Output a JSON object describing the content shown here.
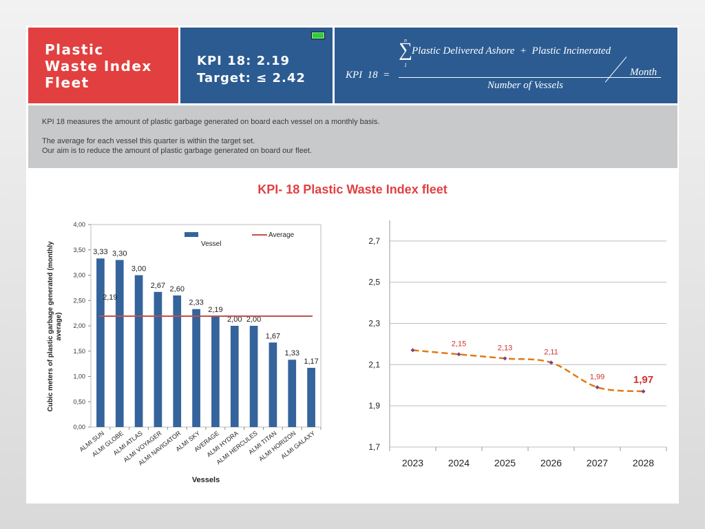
{
  "header": {
    "title_lines": [
      "Plastic",
      "Waste Index",
      "Fleet"
    ],
    "kpi_value": "KPI 18: 2.19",
    "kpi_target": "Target: ≤ 2.42",
    "battery_icon": "battery-full-icon",
    "formula": {
      "lhs": "KPI  18  =",
      "sigma_top": "n",
      "sigma_bottom": "1",
      "numerator": "Plastic Delivered Ashore  +  Plastic Incinerated",
      "per": "Month",
      "denominator": "Number of Vessels"
    }
  },
  "description": {
    "line1": "KPI 18 measures the amount of plastic garbage generated on board each vessel on a monthly basis.",
    "line2": "The average for each vessel this quarter is within the target set.",
    "line3": "Our aim is to reduce the amount of plastic garbage generated on board our fleet."
  },
  "main_title": "KPI- 18 Plastic Waste Index fleet",
  "colors": {
    "red": "#e24040",
    "blue": "#2b5b91",
    "bar": "#34649b",
    "avg_line": "#c0504d",
    "trend_line": "#e07a10",
    "marker": "#7d3f8c",
    "trend_label": "#d0312d"
  },
  "chart_data": [
    {
      "type": "bar",
      "xlabel": "Vessels",
      "ylabel": "Cubic meters of plastic garbage generated (monthly average)",
      "ylim": [
        0,
        4
      ],
      "yticks": [
        "0,00",
        "0,50",
        "1,00",
        "1,50",
        "2,00",
        "2,50",
        "3,00",
        "3,50",
        "4,00"
      ],
      "categories": [
        "ALMI SUN",
        "ALMI GLOBE",
        "ALMI ATLAS",
        "ALMI VOYAGER",
        "ALMI NAVIGATOR",
        "ALMI SKY",
        "AVERAGE",
        "ALMI HYDRA",
        "ALMI HERCULES",
        "ALMI TITAN",
        "ALMI HORIZON",
        "ALMI GALAXY"
      ],
      "series": [
        {
          "name": "Vessel",
          "values": [
            3.33,
            3.3,
            3.0,
            2.67,
            2.6,
            2.33,
            2.19,
            2.0,
            2.0,
            1.67,
            1.33,
            1.17
          ],
          "labels": [
            "3,33",
            "3,30",
            "3,00",
            "2,67",
            "2,60",
            "2,33",
            "2,19",
            "2,00",
            "2,00",
            "1,67",
            "1,33",
            "1,17"
          ]
        },
        {
          "name": "Average",
          "type": "line",
          "value": 2.19,
          "label": "2,19"
        }
      ],
      "grid": false,
      "legend": "top-right"
    },
    {
      "type": "line",
      "x": [
        "2023",
        "2024",
        "2025",
        "2026",
        "2027",
        "2028"
      ],
      "values": [
        2.17,
        2.15,
        2.13,
        2.11,
        1.99,
        1.97
      ],
      "labels": [
        "",
        "2,15",
        "2,13",
        "2,11",
        "1,99",
        "1,97"
      ],
      "ylim": [
        1.7,
        2.8
      ],
      "yticks": [
        "1,7",
        "1,9",
        "2,1",
        "2,3",
        "2,5",
        "2,7"
      ],
      "grid": true,
      "style": "dashed-smooth"
    }
  ]
}
